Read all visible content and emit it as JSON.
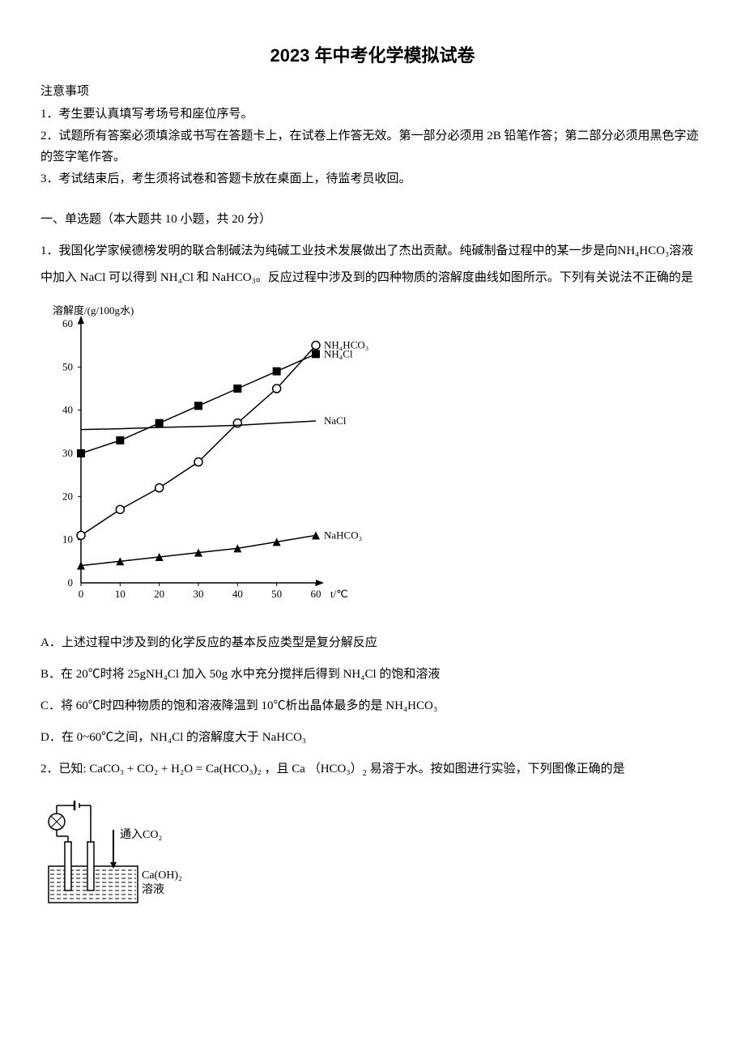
{
  "title": "2023 年中考化学模拟试卷",
  "notice_header": "注意事项",
  "notice_items": [
    "1．考生要认真填写考场号和座位序号。",
    "2．试题所有答案必须填涂或书写在答题卡上，在试卷上作答无效。第一部分必须用 2B 铅笔作答；第二部分必须用黑色字迹的签字笔作答。",
    "3．考试结束后，考生须将试卷和答题卡放在桌面上，待监考员收回。"
  ],
  "section1_header": "一、单选题（本大题共 10 小题，共 20 分）",
  "q1": {
    "text": "1．我国化学家候德榜发明的联合制碱法为纯碱工业技术发展做出了杰出贡献。纯碱制备过程中的某一步是向NH₄HCO₃溶液中加入 NaCl 可以得到 NH₄Cl 和 NaHCO₃。反应过程中涉及到的四种物质的溶解度曲线如图所示。下列有关说法不正确的是",
    "optA": "A．上述过程中涉及到的化学反应的基本反应类型是复分解反应",
    "optB": "B．在 20℃时将 25gNH₄Cl 加入 50g 水中充分搅拌后得到 NH₄Cl 的饱和溶液",
    "optC": "C．将 60℃时四种物质的饱和溶液降温到 10℃析出晶体最多的是 NH₄HCO₃",
    "optD": "D．在 0~60℃之间，NH₄Cl 的溶解度大于 NaHCO₃"
  },
  "chart": {
    "ylabel": "溶解度/(g/100g水)",
    "xlabel": "t/℃",
    "xlim": [
      0,
      60
    ],
    "ylim": [
      0,
      60
    ],
    "xticks": [
      0,
      10,
      20,
      30,
      40,
      50,
      60
    ],
    "yticks": [
      0,
      10,
      20,
      30,
      40,
      50,
      60
    ],
    "background": "#ffffff",
    "axis_color": "#000000",
    "line_width": 1.5,
    "series": [
      {
        "name": "NH4HCO3",
        "label": "NH₄HCO₃",
        "marker": "circle-open",
        "color": "#000000",
        "x": [
          0,
          10,
          20,
          30,
          40,
          50,
          60
        ],
        "y": [
          11,
          17,
          22,
          28,
          37,
          45,
          55
        ]
      },
      {
        "name": "NH4Cl",
        "label": "NH₄Cl",
        "marker": "square",
        "color": "#000000",
        "x": [
          0,
          10,
          20,
          30,
          40,
          50,
          60
        ],
        "y": [
          30,
          33,
          37,
          41,
          45,
          49,
          53
        ]
      },
      {
        "name": "NaCl",
        "label": "NaCl",
        "marker": "none",
        "color": "#000000",
        "x": [
          0,
          10,
          20,
          30,
          40,
          50,
          60
        ],
        "y": [
          35.5,
          35.7,
          36,
          36.2,
          36.5,
          37,
          37.5
        ]
      },
      {
        "name": "NaHCO3",
        "label": "NaHCO₃",
        "marker": "triangle",
        "color": "#000000",
        "x": [
          0,
          10,
          20,
          30,
          40,
          50,
          60
        ],
        "y": [
          4,
          5,
          6,
          7,
          8,
          9.5,
          11
        ]
      }
    ],
    "label_fontsize": 13,
    "tick_fontsize": 13,
    "marker_size": 5
  },
  "q2": {
    "prefix": "2．已知:",
    "formula": "CaCO₃ + CO₂ + H₂O = Ca(HCO₃)₂",
    "mid": "，且 Ca （HCO₃）",
    "sub2": "2",
    "suffix": "易溶于水。按如图进行实验，下列图像正确的是"
  },
  "experiment": {
    "arrow_label": "通入CO₂",
    "solution_label1": "Ca(OH)₂",
    "solution_label2": "溶液",
    "colors": {
      "stroke": "#000000",
      "fill": "#ffffff"
    }
  }
}
